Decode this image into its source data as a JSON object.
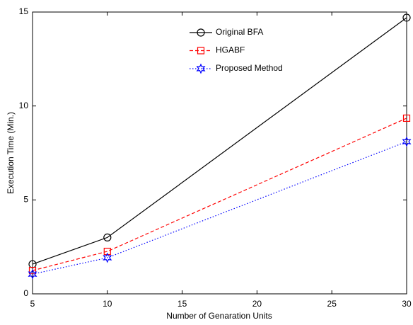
{
  "chart_data": {
    "type": "line",
    "xlabel": "Number of Genaration Units",
    "ylabel": "Execution Time  (Min.)",
    "x": [
      5,
      10,
      30
    ],
    "series": [
      {
        "name": "Original BFA",
        "color": "#000000",
        "marker": "circle",
        "linestyle": "solid",
        "values": [
          1.58,
          3.0,
          14.7
        ]
      },
      {
        "name": "HGABF",
        "color": "#ff0000",
        "marker": "square",
        "linestyle": "dashed",
        "values": [
          1.24,
          2.26,
          9.35
        ]
      },
      {
        "name": "Proposed Method",
        "color": "#0000ff",
        "marker": "hexagram",
        "linestyle": "dotted",
        "values": [
          1.05,
          1.92,
          8.1
        ]
      }
    ],
    "xlim": [
      5,
      30
    ],
    "xticks": [
      5,
      10,
      15,
      20,
      25,
      30
    ],
    "ylim": [
      0,
      15
    ],
    "yticks": [
      0,
      5,
      10,
      15
    ],
    "legend": "top-center"
  }
}
